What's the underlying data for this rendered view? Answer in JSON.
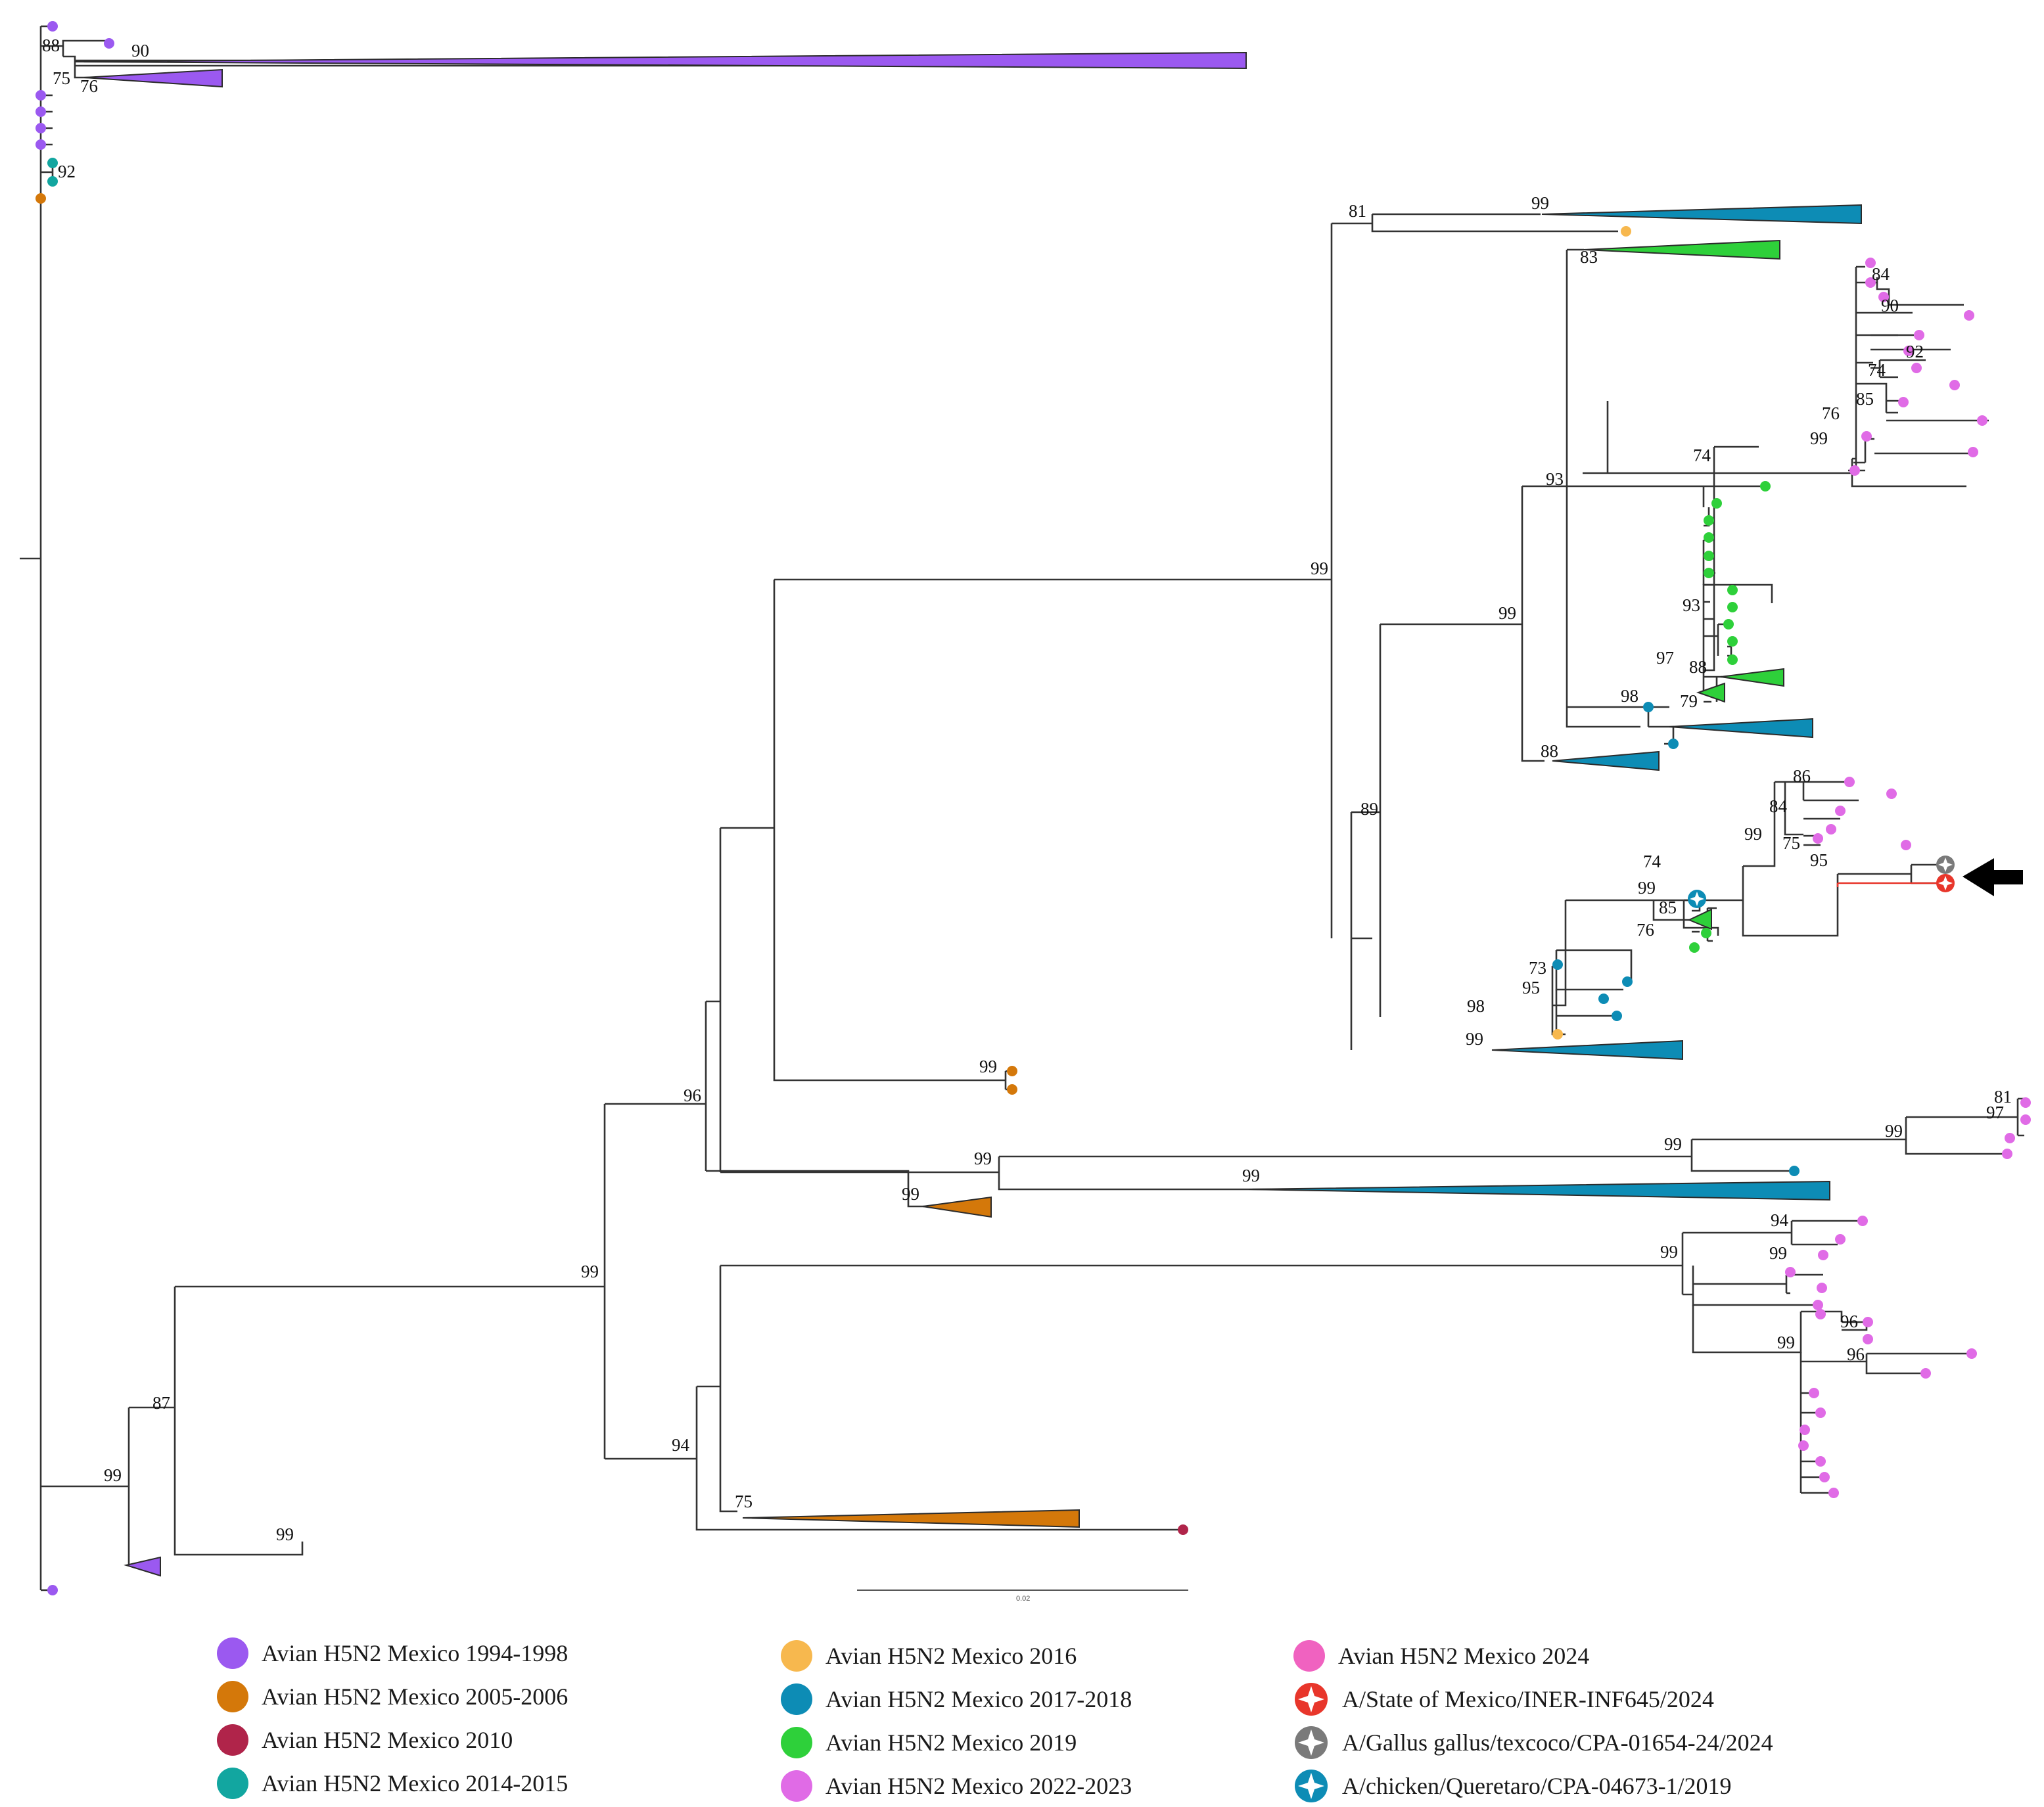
{
  "colors": {
    "purple": "#9b59f0",
    "orange": "#d4780a",
    "crimson": "#b0244a",
    "teal": "#12a6a0",
    "gold": "#f7b84e",
    "blue": "#0d8cb5",
    "green": "#2ed03a",
    "pink": "#e06be6",
    "branch": "#333333",
    "highlight": "#e8362b",
    "grey": "#7a7a7a"
  },
  "bootstrap": {
    "b88_top": "88",
    "b90_top": "90",
    "b75_top": "75",
    "b76_top": "76",
    "b92_top": "92",
    "b81_a": "81",
    "b99_a": "99",
    "b83": "83",
    "b84_a": "84",
    "b90_a": "90",
    "b92_a": "92",
    "b74_a": "74",
    "b85_a": "85",
    "b76_a": "76",
    "b99_b": "99",
    "b74_b": "74",
    "b93_a": "93",
    "b99_c": "99",
    "b99_d": "99",
    "b93_b": "93",
    "b97_a": "97",
    "b88_a": "88",
    "b79": "79",
    "b98_a": "98",
    "b88_b": "88",
    "b89": "89",
    "b86": "86",
    "b84_b": "84",
    "b99_e": "99",
    "b75_a": "75",
    "b95_a": "95",
    "b74_c": "74",
    "b99_f": "99",
    "b85_b": "85",
    "b76_b": "76",
    "b73": "73",
    "b95_b": "95",
    "b98_b": "98",
    "b99_g": "99",
    "b99_h": "99",
    "b96_a": "96",
    "b81_b": "81",
    "b97_b": "97",
    "b99_i": "99",
    "b99_j": "99",
    "b99_k": "99",
    "b99_l": "99",
    "b99_m": "99",
    "b94_a": "94",
    "b99_n": "99",
    "b99_o": "99",
    "b96_b": "96",
    "b99_p": "99",
    "b96_c": "96",
    "b99_q": "99",
    "b94_b": "94",
    "b87": "87",
    "b75_b": "75",
    "b99_r": "99",
    "b99_s": "99"
  },
  "scale_bar": {
    "label": "0.02"
  },
  "legend": [
    {
      "label": "Avian H5N2 Mexico 1994-1998",
      "color": "#9b59f0",
      "marker": "dot"
    },
    {
      "label": "Avian H5N2 Mexico 2005-2006",
      "color": "#d4780a",
      "marker": "dot"
    },
    {
      "label": "Avian H5N2 Mexico 2010",
      "color": "#b0244a",
      "marker": "dot"
    },
    {
      "label": "Avian H5N2 Mexico 2014-2015",
      "color": "#12a6a0",
      "marker": "dot"
    },
    {
      "label": "Avian H5N2 Mexico 2016",
      "color": "#f7b84e",
      "marker": "dot"
    },
    {
      "label": "Avian H5N2 Mexico 2017-2018",
      "color": "#0d8cb5",
      "marker": "dot"
    },
    {
      "label": "Avian H5N2 Mexico 2019",
      "color": "#2ed03a",
      "marker": "dot"
    },
    {
      "label": "Avian H5N2 Mexico 2022-2023",
      "color": "#e06be6",
      "marker": "dot"
    },
    {
      "label": "Avian H5N2 Mexico 2024",
      "color": "#f062c0",
      "marker": "dot"
    },
    {
      "label": "A/State of Mexico/INER-INF645/2024",
      "color": "#e8362b",
      "marker": "star"
    },
    {
      "label": "A/Gallus gallus/texcoco/CPA-01654-24/2024",
      "color": "#7a7a7a",
      "marker": "star"
    },
    {
      "label": "A/chicken/Queretaro/CPA-04673-1/2019",
      "color": "#0d8cb5",
      "marker": "star"
    }
  ]
}
